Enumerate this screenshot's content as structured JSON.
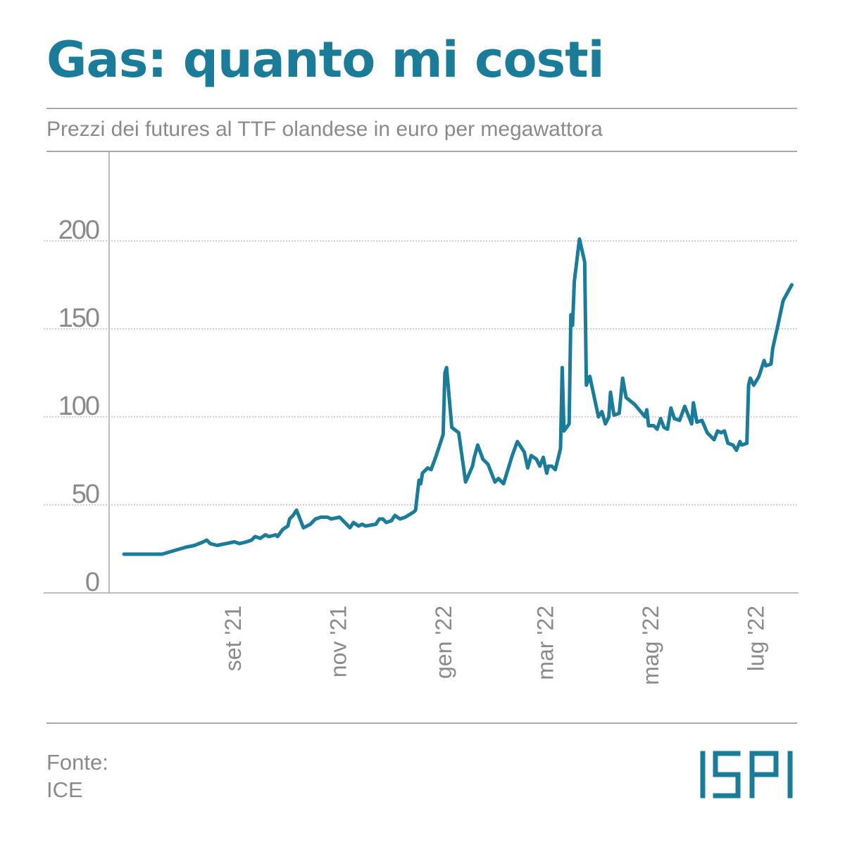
{
  "header": {
    "title": "Gas: quanto mi costi",
    "subtitle": "Prezzi dei futures al TTF olandese in euro per megawattora"
  },
  "footer": {
    "source_label": "Fonte:",
    "source_name": "ICE",
    "logo_text": "ISPI"
  },
  "colors": {
    "accent": "#1a7c98",
    "text_muted": "#8a8a8a",
    "rule": "#a8a8a8",
    "grid": "#b5b5b5"
  },
  "chart_data": {
    "type": "line",
    "title": "Gas: quanto mi costi",
    "ylabel": "",
    "xlabel": "",
    "ylim": [
      0,
      250
    ],
    "yticks": [
      0,
      50,
      100,
      150,
      200
    ],
    "grid": true,
    "x_domain": [
      "2021-07-01",
      "2022-07-20"
    ],
    "xticks": [
      {
        "label": "set '21",
        "date": "2021-09-01"
      },
      {
        "label": "nov '21",
        "date": "2021-11-01"
      },
      {
        "label": "gen '22",
        "date": "2022-01-01"
      },
      {
        "label": "mar '22",
        "date": "2022-03-01"
      },
      {
        "label": "mag '22",
        "date": "2022-05-01"
      },
      {
        "label": "lug '22",
        "date": "2022-07-01"
      }
    ],
    "series": [
      {
        "color": "#1a7c98",
        "points": [
          [
            "2021-07-01",
            22
          ],
          [
            "2021-07-23",
            22
          ],
          [
            "2021-07-30",
            24
          ],
          [
            "2021-08-06",
            26
          ],
          [
            "2021-08-11",
            27
          ],
          [
            "2021-08-16",
            29
          ],
          [
            "2021-08-18",
            30
          ],
          [
            "2021-08-20",
            28
          ],
          [
            "2021-08-24",
            27
          ],
          [
            "2021-08-29",
            28
          ],
          [
            "2021-09-03",
            29
          ],
          [
            "2021-09-06",
            28
          ],
          [
            "2021-09-10",
            29
          ],
          [
            "2021-09-13",
            30
          ],
          [
            "2021-09-15",
            32
          ],
          [
            "2021-09-18",
            31
          ],
          [
            "2021-09-21",
            33
          ],
          [
            "2021-09-23",
            32
          ],
          [
            "2021-09-27",
            33
          ],
          [
            "2021-09-28",
            32
          ],
          [
            "2021-10-01",
            36
          ],
          [
            "2021-10-04",
            38
          ],
          [
            "2021-10-05",
            42
          ],
          [
            "2021-10-07",
            44
          ],
          [
            "2021-10-09",
            47
          ],
          [
            "2021-10-13",
            37
          ],
          [
            "2021-10-17",
            39
          ],
          [
            "2021-10-20",
            42
          ],
          [
            "2021-10-23",
            43
          ],
          [
            "2021-10-27",
            43
          ],
          [
            "2021-10-29",
            42
          ],
          [
            "2021-11-03",
            43
          ],
          [
            "2021-11-06",
            40
          ],
          [
            "2021-11-09",
            37
          ],
          [
            "2021-11-11",
            40
          ],
          [
            "2021-11-14",
            38
          ],
          [
            "2021-11-16",
            39
          ],
          [
            "2021-11-18",
            38
          ],
          [
            "2021-11-24",
            39
          ],
          [
            "2021-11-26",
            42
          ],
          [
            "2021-11-28",
            42
          ],
          [
            "2021-11-30",
            40
          ],
          [
            "2021-12-03",
            41
          ],
          [
            "2021-12-05",
            44
          ],
          [
            "2021-12-08",
            42
          ],
          [
            "2021-12-11",
            43
          ],
          [
            "2021-12-16",
            46
          ],
          [
            "2021-12-17",
            47
          ],
          [
            "2021-12-19",
            64
          ],
          [
            "2021-12-20",
            62
          ],
          [
            "2021-12-21",
            68
          ],
          [
            "2021-12-24",
            71
          ],
          [
            "2021-12-26",
            70
          ],
          [
            "2021-12-29",
            78
          ],
          [
            "2022-01-02",
            90
          ],
          [
            "2022-01-03",
            125
          ],
          [
            "2022-01-04",
            128
          ],
          [
            "2022-01-07",
            94
          ],
          [
            "2022-01-11",
            91
          ],
          [
            "2022-01-15",
            63
          ],
          [
            "2022-01-19",
            72
          ],
          [
            "2022-01-20",
            77
          ],
          [
            "2022-01-22",
            84
          ],
          [
            "2022-01-25",
            76
          ],
          [
            "2022-01-28",
            73
          ],
          [
            "2022-02-01",
            63
          ],
          [
            "2022-02-03",
            65
          ],
          [
            "2022-02-06",
            62
          ],
          [
            "2022-02-11",
            78
          ],
          [
            "2022-02-14",
            86
          ],
          [
            "2022-02-18",
            80
          ],
          [
            "2022-02-20",
            71
          ],
          [
            "2022-02-22",
            78
          ],
          [
            "2022-02-25",
            76
          ],
          [
            "2022-02-27",
            72
          ],
          [
            "2022-03-01",
            77
          ],
          [
            "2022-03-03",
            68
          ],
          [
            "2022-03-04",
            72
          ],
          [
            "2022-03-06",
            72
          ],
          [
            "2022-03-08",
            70
          ],
          [
            "2022-03-11",
            82
          ],
          [
            "2022-03-12",
            128
          ],
          [
            "2022-03-13",
            92
          ],
          [
            "2022-03-16",
            96
          ],
          [
            "2022-03-17",
            158
          ],
          [
            "2022-03-18",
            152
          ],
          [
            "2022-03-19",
            177
          ],
          [
            "2022-03-22",
            201
          ],
          [
            "2022-03-25",
            188
          ],
          [
            "2022-03-26",
            118
          ],
          [
            "2022-03-28",
            123
          ],
          [
            "2022-04-02",
            100
          ],
          [
            "2022-04-04",
            103
          ],
          [
            "2022-04-06",
            96
          ],
          [
            "2022-04-08",
            100
          ],
          [
            "2022-04-09",
            114
          ],
          [
            "2022-04-11",
            101
          ],
          [
            "2022-04-14",
            102
          ],
          [
            "2022-04-16",
            122
          ],
          [
            "2022-04-18",
            111
          ],
          [
            "2022-04-23",
            107
          ],
          [
            "2022-04-29",
            100
          ],
          [
            "2022-04-30",
            104
          ],
          [
            "2022-05-01",
            95
          ],
          [
            "2022-05-04",
            95
          ],
          [
            "2022-05-06",
            93
          ],
          [
            "2022-05-08",
            99
          ],
          [
            "2022-05-10",
            94
          ],
          [
            "2022-05-12",
            93
          ],
          [
            "2022-05-14",
            105
          ],
          [
            "2022-05-16",
            99
          ],
          [
            "2022-05-19",
            98
          ],
          [
            "2022-05-22",
            106
          ],
          [
            "2022-05-26",
            96
          ],
          [
            "2022-05-27",
            108
          ],
          [
            "2022-05-29",
            97
          ],
          [
            "2022-06-01",
            98
          ],
          [
            "2022-06-04",
            91
          ],
          [
            "2022-06-08",
            87
          ],
          [
            "2022-06-10",
            92
          ],
          [
            "2022-06-12",
            91
          ],
          [
            "2022-06-14",
            92
          ],
          [
            "2022-06-16",
            85
          ],
          [
            "2022-06-19",
            84
          ],
          [
            "2022-06-21",
            81
          ],
          [
            "2022-06-23",
            86
          ],
          [
            "2022-06-24",
            84
          ],
          [
            "2022-06-27",
            85
          ],
          [
            "2022-06-28",
            118
          ],
          [
            "2022-06-29",
            122
          ],
          [
            "2022-07-01",
            118
          ],
          [
            "2022-07-04",
            123
          ],
          [
            "2022-07-07",
            132
          ],
          [
            "2022-07-08",
            129
          ],
          [
            "2022-07-11",
            130
          ],
          [
            "2022-07-12",
            139
          ],
          [
            "2022-07-15",
            152
          ],
          [
            "2022-07-18",
            166
          ],
          [
            "2022-07-23",
            175
          ]
        ]
      }
    ]
  }
}
